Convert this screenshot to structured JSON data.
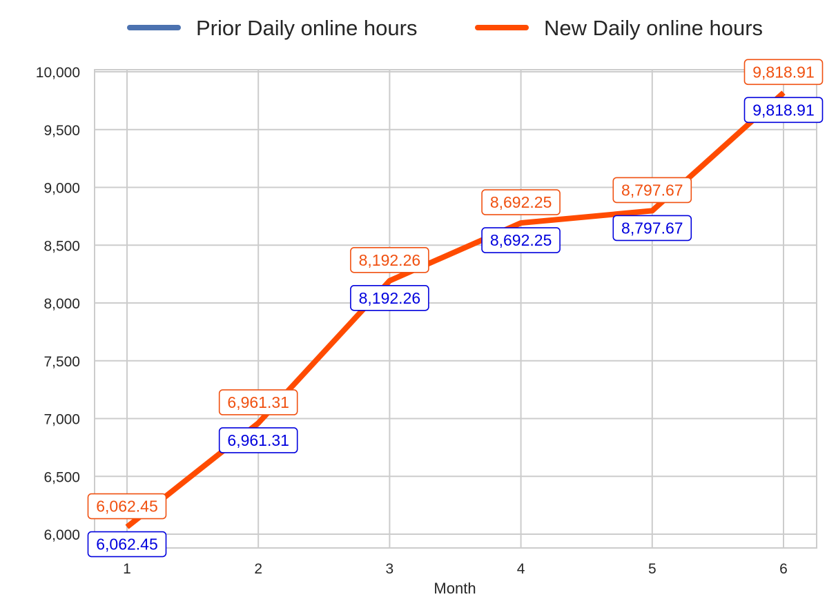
{
  "chart_data": {
    "type": "line",
    "x": [
      1,
      2,
      3,
      4,
      5,
      6
    ],
    "x_tick_labels": [
      "1",
      "2",
      "3",
      "4",
      "5",
      "6"
    ],
    "xlabel": "Month",
    "ylabel": "",
    "ylim": [
      5900,
      10100
    ],
    "y_ticks": [
      6000,
      6500,
      7000,
      7500,
      8000,
      8500,
      9000,
      9500,
      10000
    ],
    "y_tick_labels": [
      "6,000",
      "6,500",
      "7,000",
      "7,500",
      "8,000",
      "8,500",
      "9,000",
      "9,500",
      "10,000"
    ],
    "grid": true,
    "legend_position": "top-center",
    "series": [
      {
        "name": "Prior Daily online hours",
        "values": [
          6062.45,
          6961.31,
          8192.26,
          8692.25,
          8797.67,
          9818.91
        ],
        "labels": [
          "6,062.45",
          "6,961.31",
          "8,192.26",
          "8,692.25",
          "8,797.67",
          "9,818.91"
        ],
        "line_color": "#4c72b0",
        "label_color": "#0000dd",
        "label_placement": "below"
      },
      {
        "name": "New Daily online hours",
        "values": [
          6062.45,
          6961.31,
          8192.26,
          8692.25,
          8797.67,
          9818.91
        ],
        "labels": [
          "6,062.45",
          "6,961.31",
          "8,192.26",
          "8,692.25",
          "8,797.67",
          "9,818.91"
        ],
        "line_color": "#ff4b00",
        "label_color": "#f05010",
        "label_placement": "above"
      }
    ]
  }
}
